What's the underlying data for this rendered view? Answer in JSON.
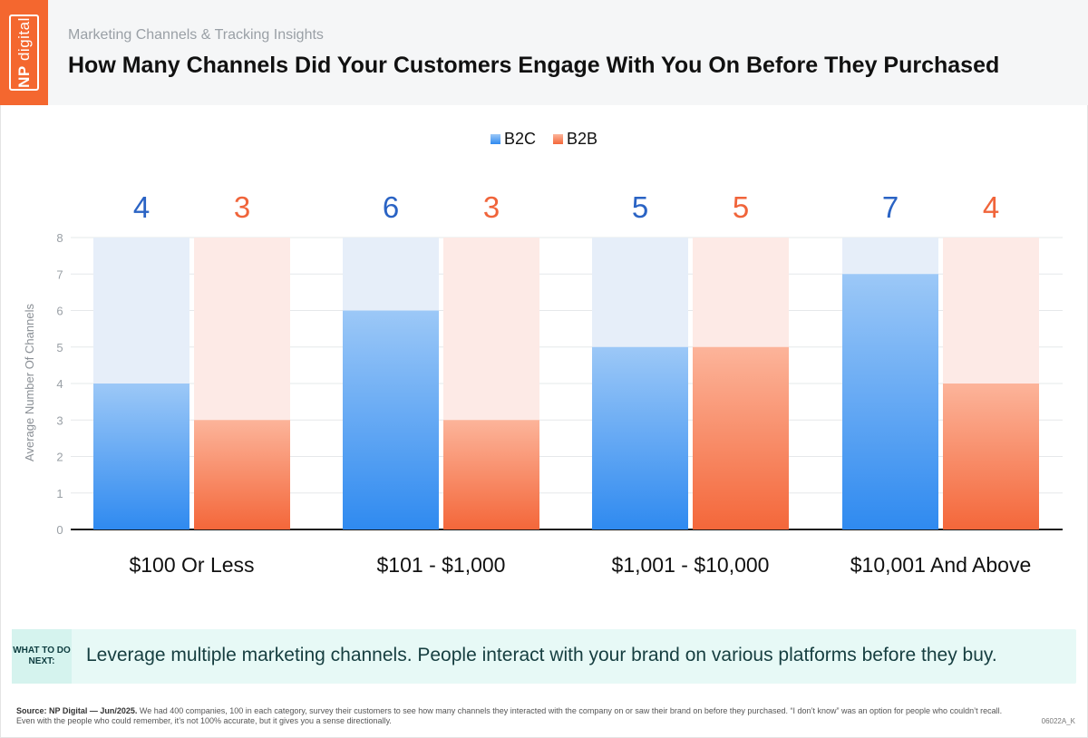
{
  "header": {
    "logo_np": "NP",
    "logo_digital": "digital",
    "subtitle": "Marketing Channels & Tracking Insights",
    "title": "How Many Channels Did Your Customers Engage With You On Before They Purchased"
  },
  "colors": {
    "brand_orange": "#f4672f",
    "b2c_label": "#2a63c4",
    "b2b_label": "#f0643a",
    "b2c_bar_top": "#9cc8f7",
    "b2c_bar_bottom": "#2f8af0",
    "b2b_bar_top": "#fcb49a",
    "b2b_bar_bottom": "#f4673a",
    "b2c_track": "#e6eef9",
    "b2b_track": "#fdeae6"
  },
  "chart_data": {
    "type": "bar",
    "categories": [
      "$100 Or Less",
      "$101 - $1,000",
      "$1,001 - $10,000",
      "$10,001 And Above"
    ],
    "series": [
      {
        "name": "B2C",
        "values": [
          4,
          6,
          5,
          7
        ]
      },
      {
        "name": "B2B",
        "values": [
          3,
          3,
          5,
          4
        ]
      }
    ],
    "ylabel": "Average Number Of Channels",
    "ylim": [
      0,
      8
    ],
    "yticks": [
      "0",
      "1",
      "2",
      "3",
      "4",
      "5",
      "6",
      "7",
      "8"
    ],
    "grid": true,
    "legend": "top-center"
  },
  "callout": {
    "tag": "WHAT TO DO NEXT:",
    "text": "Leverage multiple marketing channels. People interact with your brand on various platforms before they buy."
  },
  "footer": {
    "source_label": "Source: NP Digital — Jun/2025.",
    "source_text": "We had 400 companies, 100 in each category, survey their customers to see how many channels they interacted with the company on or saw their brand on before they purchased. “I don’t know” was an option for people who couldn’t recall. Even with the people who could remember, it’s not 100% accurate, but it gives you a sense directionally.",
    "code": "06022A_K"
  }
}
